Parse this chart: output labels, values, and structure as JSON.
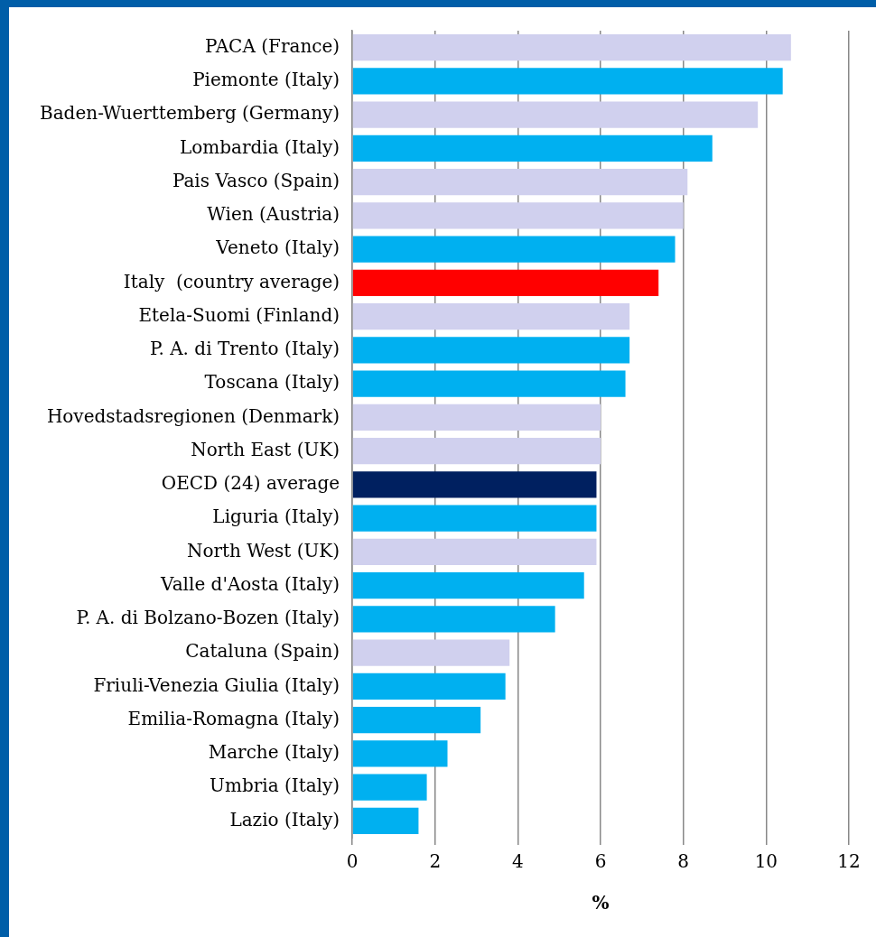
{
  "chart_data": {
    "type": "bar",
    "orientation": "horizontal",
    "xlabel": "%",
    "categories": [
      "PACA (France)",
      "Piemonte (Italy)",
      "Baden-Wuerttemberg (Germany)",
      "Lombardia (Italy)",
      "Pais Vasco (Spain)",
      "Wien (Austria)",
      "Veneto (Italy)",
      "Italy  (country average)",
      "Etela-Suomi (Finland)",
      "P. A. di Trento (Italy)",
      "Toscana (Italy)",
      "Hovedstadsregionen (Denmark)",
      "North East (UK)",
      "OECD (24) average",
      "Liguria (Italy)",
      "North West (UK)",
      "Valle d'Aosta (Italy)",
      "P. A. di Bolzano-Bozen (Italy)",
      "Cataluna (Spain)",
      "Friuli-Venezia Giulia (Italy)",
      "Emilia-Romagna (Italy)",
      "Marche (Italy)",
      "Umbria (Italy)",
      "Lazio (Italy)"
    ],
    "values": [
      10.6,
      10.4,
      9.8,
      8.7,
      8.1,
      8.0,
      7.8,
      7.4,
      6.7,
      6.7,
      6.6,
      6.0,
      6.0,
      5.9,
      5.9,
      5.9,
      5.6,
      4.9,
      3.8,
      3.7,
      3.1,
      2.3,
      1.8,
      1.6
    ],
    "colors": [
      "#d0d0ee",
      "#00b0f0",
      "#d0d0ee",
      "#00b0f0",
      "#d0d0ee",
      "#d0d0ee",
      "#00b0f0",
      "#ff0000",
      "#d0d0ee",
      "#00b0f0",
      "#00b0f0",
      "#d0d0ee",
      "#d0d0ee",
      "#002060",
      "#00b0f0",
      "#d0d0ee",
      "#00b0f0",
      "#00b0f0",
      "#d0d0ee",
      "#00b0f0",
      "#00b0f0",
      "#00b0f0",
      "#00b0f0",
      "#00b0f0"
    ],
    "xlim": [
      0,
      12
    ],
    "xticks": [
      0,
      2,
      4,
      6,
      8,
      10,
      12
    ],
    "grid": "x",
    "legend": false
  }
}
